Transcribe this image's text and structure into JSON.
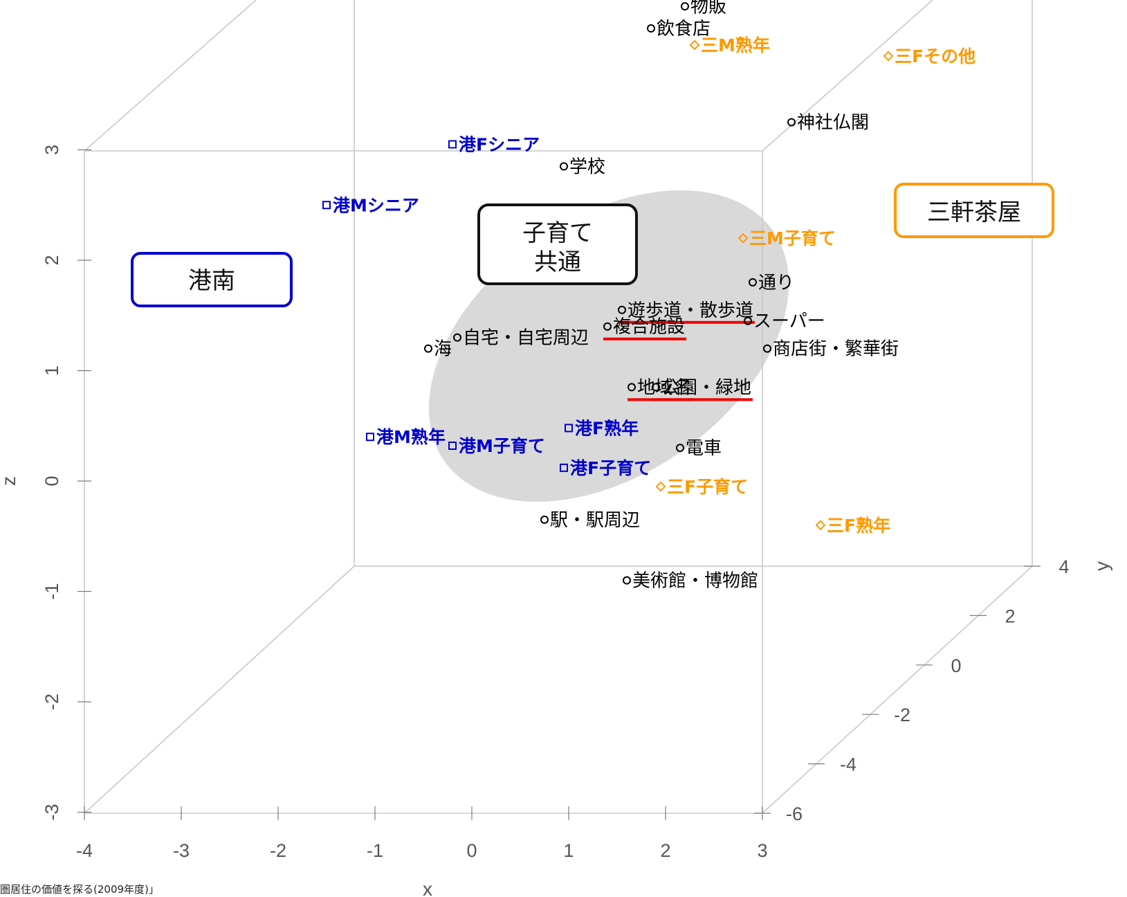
{
  "caption": "圏居住の価値を探る(2009年度)」",
  "chart_data": {
    "type": "scatter",
    "projection": "3d",
    "xlabel": "x",
    "ylabel": "y",
    "zlabel": "z",
    "xlim": [
      -4,
      3
    ],
    "ylim": [
      -6,
      4
    ],
    "zlim": [
      -3,
      3
    ],
    "x_ticks": [
      "-4",
      "-3",
      "-2",
      "-1",
      "0",
      "1",
      "2",
      "3"
    ],
    "y_ticks": [
      "-6",
      "-4",
      "-2",
      "0",
      "2",
      "4"
    ],
    "z_ticks": [
      "-3",
      "-2",
      "-1",
      "0",
      "1",
      "2",
      "3"
    ],
    "colors": {
      "words": "#000000",
      "konan": "#0000cc",
      "sangenjaya": "#ff9900",
      "highlight": "#ee0000",
      "ellipse": "#d9d9d9"
    },
    "word_points": [
      {
        "label": "物販",
        "x": 2.2,
        "z": 4.3
      },
      {
        "label": "飲食店",
        "x": 1.85,
        "z": 4.1
      },
      {
        "label": "神社仏閣",
        "x": 3.3,
        "z": 3.25
      },
      {
        "label": "学校",
        "x": 0.95,
        "z": 2.85
      },
      {
        "label": "通り",
        "x": 2.9,
        "z": 1.8
      },
      {
        "label": "遊歩道・散歩道",
        "x": 1.55,
        "z": 1.55,
        "underline": true
      },
      {
        "label": "スーパー",
        "x": 2.85,
        "z": 1.45
      },
      {
        "label": "複合施設",
        "x": 1.4,
        "z": 1.4,
        "underline": true
      },
      {
        "label": "自宅・自宅周辺",
        "x": -0.15,
        "z": 1.3
      },
      {
        "label": "海",
        "x": -0.45,
        "z": 1.2
      },
      {
        "label": "商店街・繁華街",
        "x": 3.05,
        "z": 1.2
      },
      {
        "label": "地域名",
        "x": 1.65,
        "z": 0.85,
        "underline": true
      },
      {
        "label": "公園・緑地",
        "x": 1.9,
        "z": 0.85,
        "underline": true
      },
      {
        "label": "電車",
        "x": 2.15,
        "z": 0.3
      },
      {
        "label": "駅・駅周辺",
        "x": 0.75,
        "z": -0.35
      },
      {
        "label": "美術館・博物館",
        "x": 1.6,
        "z": -0.9
      }
    ],
    "series": [
      {
        "name": "港南",
        "marker": "square",
        "points": [
          {
            "label": "港Fシニア",
            "x": -0.2,
            "z": 3.05
          },
          {
            "label": "港Mシニア",
            "x": -1.5,
            "z": 2.5
          },
          {
            "label": "港M熟年",
            "x": -1.05,
            "z": 0.4
          },
          {
            "label": "港M子育て",
            "x": -0.2,
            "z": 0.32
          },
          {
            "label": "港F熟年",
            "x": 1.0,
            "z": 0.48
          },
          {
            "label": "港F子育て",
            "x": 0.95,
            "z": 0.12
          }
        ]
      },
      {
        "name": "三軒茶屋",
        "marker": "diamond",
        "points": [
          {
            "label": "三M熟年",
            "x": 2.3,
            "z": 3.95
          },
          {
            "label": "三Fその他",
            "x": 4.3,
            "z": 3.85
          },
          {
            "label": "三M子育て",
            "x": 2.8,
            "z": 2.2
          },
          {
            "label": "三F子育て",
            "x": 1.95,
            "z": -0.05
          },
          {
            "label": "三F熟年",
            "x": 3.6,
            "z": -0.4
          }
        ]
      }
    ],
    "annotations": [
      "港南",
      "子育て\n共通",
      "三軒茶屋"
    ]
  }
}
